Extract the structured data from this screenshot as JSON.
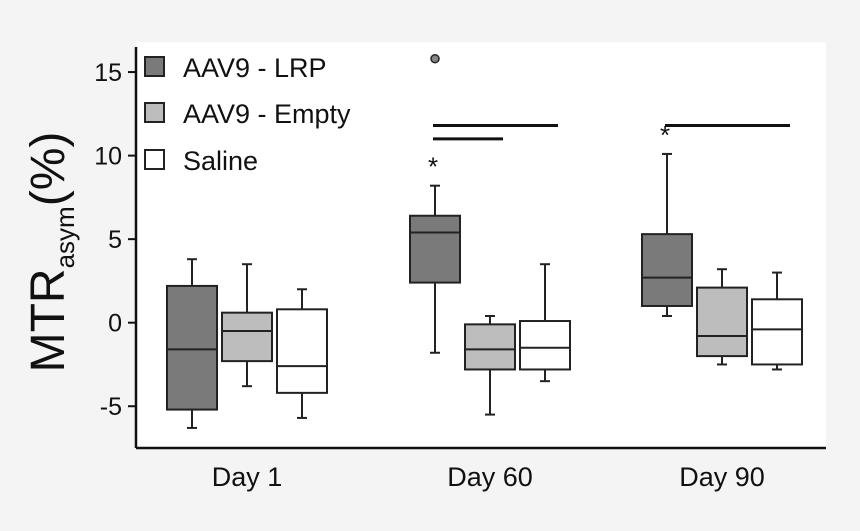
{
  "chart_data": {
    "type": "box",
    "title": "",
    "xlabel": "",
    "ylabel": {
      "main": "MTR",
      "subscript": "asym",
      "unit": "(%)"
    },
    "ylim": [
      -7.5,
      16.5
    ],
    "yticks": [
      -5,
      0,
      5,
      10,
      15
    ],
    "ytick_labels": [
      "-5",
      "0",
      "5",
      "10",
      "15"
    ],
    "categories": [
      "Day 1",
      "Day 60",
      "Day 90"
    ],
    "legend_position": "top-left",
    "series": [
      {
        "name": "AAV9 - LRP",
        "color": "#7a7a7a",
        "boxes": [
          {
            "min": -6.3,
            "q1": -5.2,
            "median": -1.6,
            "q3": 2.2,
            "max": 3.8
          },
          {
            "min": -1.8,
            "q1": 2.4,
            "median": 5.4,
            "q3": 6.4,
            "max": 8.2
          },
          {
            "min": 0.4,
            "q1": 1.0,
            "median": 2.7,
            "q3": 5.3,
            "max": 10.1
          }
        ]
      },
      {
        "name": "AAV9 - Empty",
        "color": "#bdbdbd",
        "boxes": [
          {
            "min": -3.8,
            "q1": -2.3,
            "median": -0.5,
            "q3": 0.6,
            "max": 3.5
          },
          {
            "min": -5.5,
            "q1": -2.8,
            "median": -1.6,
            "q3": -0.1,
            "max": 0.4
          },
          {
            "min": -2.5,
            "q1": -2.0,
            "median": -0.8,
            "q3": 2.1,
            "max": 3.2
          }
        ]
      },
      {
        "name": "Saline",
        "color": "#ffffff",
        "boxes": [
          {
            "min": -5.7,
            "q1": -4.2,
            "median": -2.6,
            "q3": 0.8,
            "max": 2.0
          },
          {
            "min": -3.5,
            "q1": -2.8,
            "median": -1.5,
            "q3": 0.1,
            "max": 3.5
          },
          {
            "min": -2.8,
            "q1": -2.5,
            "median": -0.4,
            "q3": 1.4,
            "max": 3.0
          }
        ]
      }
    ],
    "outliers": [
      {
        "category": "Day 60",
        "series": "AAV9 - LRP",
        "value": 15.8
      }
    ],
    "annotations": [
      {
        "type": "significance",
        "text": "*",
        "category": "Day 60",
        "series": "AAV9 - LRP"
      },
      {
        "type": "significance",
        "text": "*",
        "category": "Day 90",
        "series": "AAV9 - LRP"
      },
      {
        "type": "bracket",
        "category": "Day 60",
        "from": "AAV9 - LRP",
        "to": "AAV9 - Empty",
        "value": 11.0
      },
      {
        "type": "bracket",
        "category": "Day 60",
        "from": "AAV9 - LRP",
        "to": "Saline",
        "value": 11.8
      },
      {
        "type": "bracket",
        "category": "Day 90",
        "from": "AAV9 - LRP",
        "to": "Saline",
        "value": 11.8
      }
    ]
  }
}
